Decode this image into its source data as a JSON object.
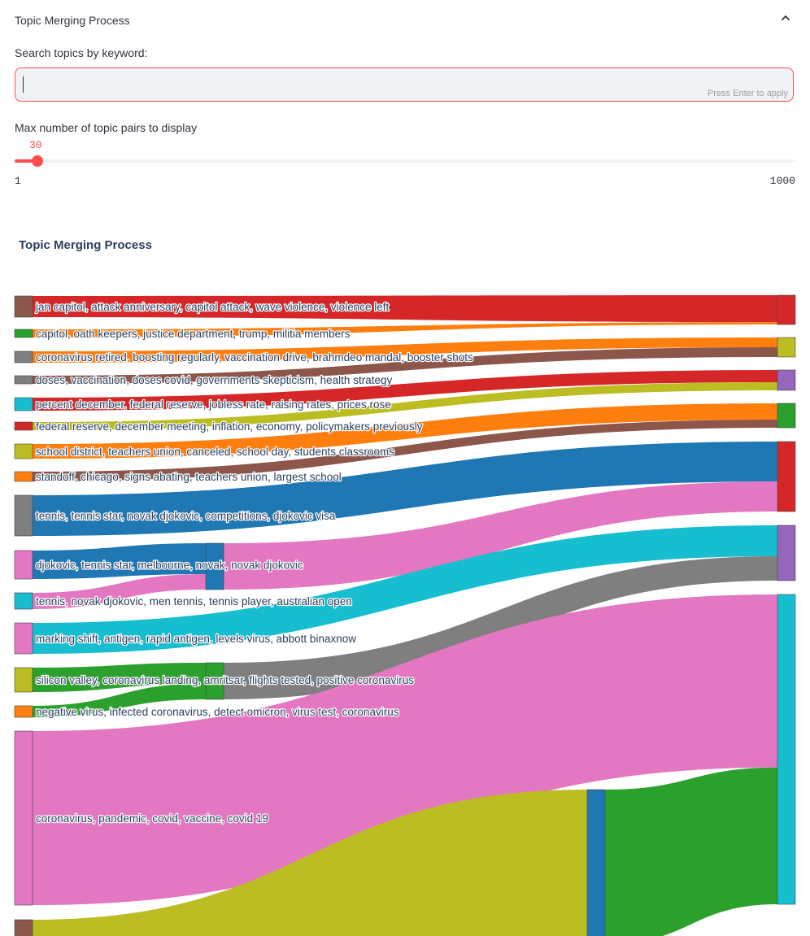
{
  "expander": {
    "title": "Topic Merging Process",
    "chevron_icon": "chevron-up-icon"
  },
  "search": {
    "label": "Search topics by keyword:",
    "value": "",
    "hint": "Press Enter to apply"
  },
  "slider": {
    "label": "Max number of topic pairs to display",
    "value": 30,
    "min": 1,
    "max": 1000,
    "min_label": "1",
    "max_label": "1000",
    "value_label": "30",
    "accent": "#ff4b4b"
  },
  "chart_title": "Topic Merging Process",
  "chart_data": {
    "type": "sankey",
    "title": "Topic Merging Process",
    "nodes": [
      {
        "label": "jan capitol, attack anniversary, capitol attack, wave violence, violence left",
        "color": "#8c564b"
      },
      {
        "label": "capitol, oath keepers, justice department, trump, militia members",
        "color": "#2ca02c"
      },
      {
        "label": "coronavirus retired, boosting regularly, vaccination drive, brahmdeo mandal, booster shots",
        "color": "#7f7f7f"
      },
      {
        "label": "doses, vaccination, doses covid, governments skepticism, health strategy",
        "color": "#7f7f7f"
      },
      {
        "label": "percent december, federal reserve, jobless rate, raising rates, prices rose",
        "color": "#17becf"
      },
      {
        "label": "federal reserve, december meeting, inflation, economy, policymakers previously",
        "color": "#d62728"
      },
      {
        "label": "school district, teachers union, canceled, school day, students classrooms",
        "color": "#bcbd22"
      },
      {
        "label": "standoff, chicago, signs abating, teachers union, largest school",
        "color": "#ff7f0e"
      },
      {
        "label": "tennis, tennis star, novak djokovic, competitions, djokovic visa",
        "color": "#7f7f7f"
      },
      {
        "label": "djokovic, tennis star, melbourne, novak, novak djokovic",
        "color": "#e377c2"
      },
      {
        "label": "tennis, novak djokovic, men tennis, tennis player, australian open",
        "color": "#17becf"
      },
      {
        "label": "marking shift, antigen, rapid antigen, levels virus, abbott binaxnow",
        "color": "#e377c2"
      },
      {
        "label": "silicon valley, coronavirus landing, amritsar, flights tested, positive coronavirus",
        "color": "#bcbd22"
      },
      {
        "label": "negative virus, infected coronavirus, detect omicron, virus test, coronavirus",
        "color": "#ff7f0e"
      },
      {
        "label": "coronavirus, pandemic, covid, vaccine, covid 19",
        "color": "#e377c2"
      },
      {
        "label": "",
        "color": "#8c564b"
      }
    ],
    "links": [
      {
        "source": 0,
        "target": 16,
        "value": 36
      },
      {
        "source": 1,
        "target": 16,
        "value": 3
      },
      {
        "source": 2,
        "target": 17,
        "value": 6
      },
      {
        "source": 3,
        "target": 17,
        "value": 6
      },
      {
        "source": 4,
        "target": 18,
        "value": 9
      },
      {
        "source": 5,
        "target": 18,
        "value": 6
      },
      {
        "source": 6,
        "target": 19,
        "value": 16
      },
      {
        "source": 7,
        "target": 19,
        "value": 8
      },
      {
        "source": 8,
        "target": 20,
        "value": 40
      },
      {
        "source": 9,
        "target": 22,
        "value": 20
      },
      {
        "source": 10,
        "target": 22,
        "value": 10
      },
      {
        "source": 22,
        "target": 20,
        "value": 30
      },
      {
        "source": 11,
        "target": 21,
        "value": 38
      },
      {
        "source": 12,
        "target": 23,
        "value": 18
      },
      {
        "source": 13,
        "target": 23,
        "value": 14
      },
      {
        "source": 23,
        "target": 21,
        "value": 30
      },
      {
        "source": 14,
        "target": 25,
        "value": 215
      },
      {
        "source": 15,
        "target": 24,
        "value": 170
      },
      {
        "source": 24,
        "target": 25,
        "value": 170
      }
    ]
  }
}
